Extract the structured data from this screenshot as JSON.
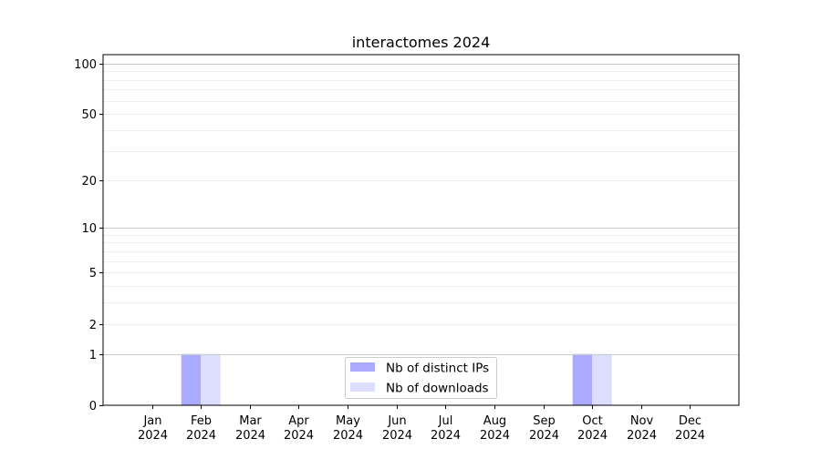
{
  "chart_data": {
    "type": "bar",
    "title": "interactomes 2024",
    "xlabel": "",
    "ylabel": "",
    "y_scale": "log(1+y)",
    "ylim": [
      0,
      113
    ],
    "y_ticks": [
      0,
      1,
      2,
      5,
      10,
      20,
      50,
      100
    ],
    "y_tick_labels": [
      "0",
      "1",
      "2",
      "5",
      "10",
      "20",
      "50",
      "100"
    ],
    "grid": true,
    "categories": [
      "Jan\n2024",
      "Feb\n2024",
      "Mar\n2024",
      "Apr\n2024",
      "May\n2024",
      "Jun\n2024",
      "Jul\n2024",
      "Aug\n2024",
      "Sep\n2024",
      "Oct\n2024",
      "Nov\n2024",
      "Dec\n2024"
    ],
    "x_tick_labels": [
      [
        "Jan",
        "2024"
      ],
      [
        "Feb",
        "2024"
      ],
      [
        "Mar",
        "2024"
      ],
      [
        "Apr",
        "2024"
      ],
      [
        "May",
        "2024"
      ],
      [
        "Jun",
        "2024"
      ],
      [
        "Jul",
        "2024"
      ],
      [
        "Aug",
        "2024"
      ],
      [
        "Sep",
        "2024"
      ],
      [
        "Oct",
        "2024"
      ],
      [
        "Nov",
        "2024"
      ],
      [
        "Dec",
        "2024"
      ]
    ],
    "series": [
      {
        "name": "Nb of distinct IPs",
        "color": "#aaaaff",
        "values": [
          0,
          1,
          0,
          0,
          0,
          0,
          0,
          0,
          0,
          1,
          0,
          0
        ]
      },
      {
        "name": "Nb of downloads",
        "color": "#ddddff",
        "values": [
          0,
          1,
          0,
          0,
          0,
          0,
          0,
          0,
          0,
          1,
          0,
          0
        ]
      }
    ],
    "legend_position": "bottom-center"
  }
}
